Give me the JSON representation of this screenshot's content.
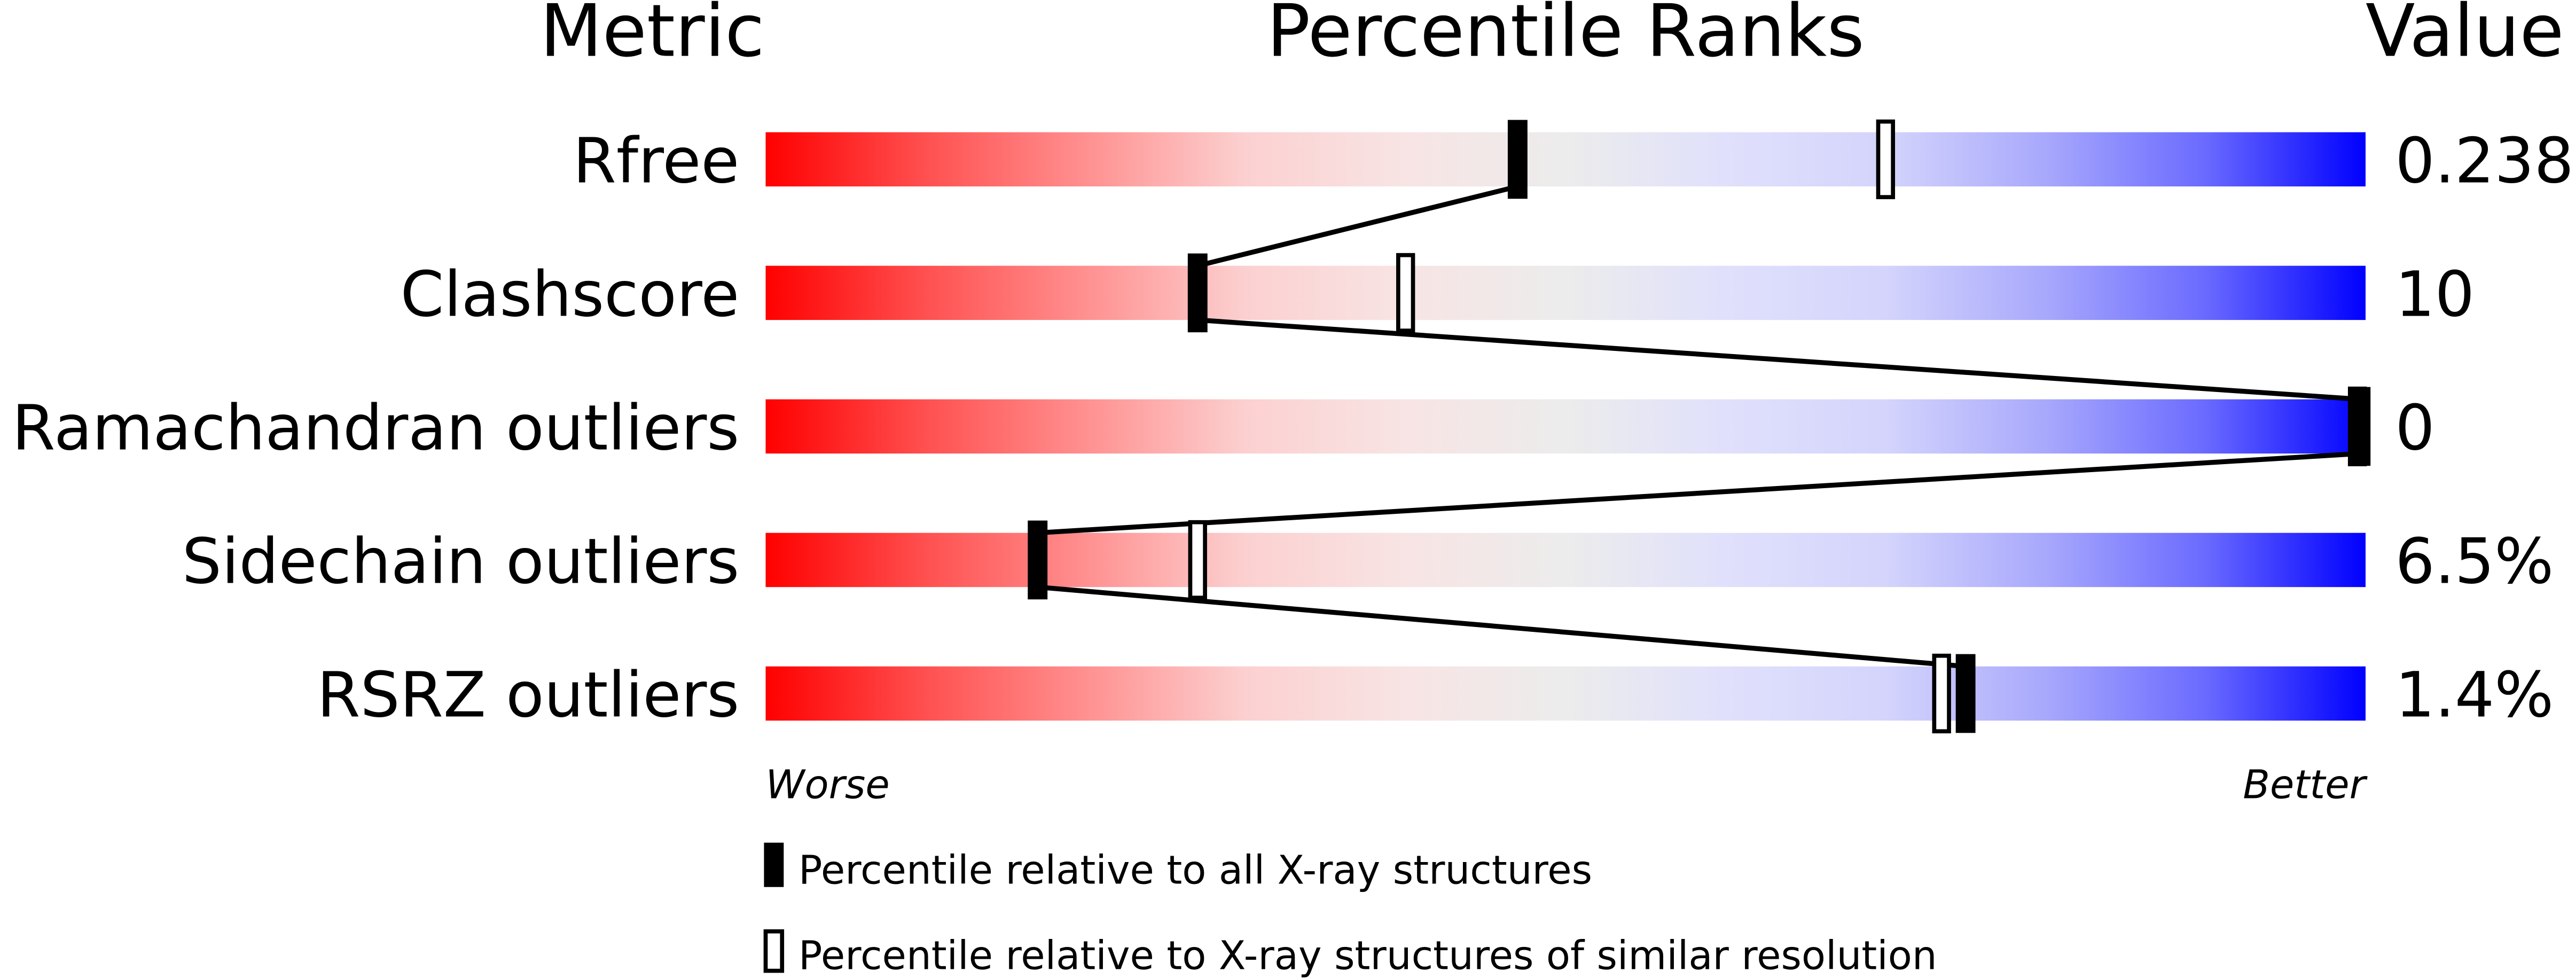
{
  "chart_data": {
    "type": "percentile-bar",
    "headers": {
      "metric": "Metric",
      "percentile": "Percentile Ranks",
      "value": "Value"
    },
    "xlim": [
      0,
      100
    ],
    "metrics": [
      {
        "name": "Rfree",
        "value": "0.238",
        "percentile_all": 47,
        "percentile_similar": 70
      },
      {
        "name": "Clashscore",
        "value": "10",
        "percentile_all": 27,
        "percentile_similar": 40
      },
      {
        "name": "Ramachandran outliers",
        "value": "0",
        "percentile_all": 100,
        "percentile_similar": 100
      },
      {
        "name": "Sidechain outliers",
        "value": "6.5%",
        "percentile_all": 17,
        "percentile_similar": 27
      },
      {
        "name": "RSRZ outliers",
        "value": "1.4%",
        "percentile_all": 75,
        "percentile_similar": 73.5
      }
    ],
    "axis_labels": {
      "left": "Worse",
      "right": "Better"
    },
    "legend": [
      {
        "marker": "filled",
        "label": "Percentile relative to all X-ray structures"
      },
      {
        "marker": "open",
        "label": "Percentile relative to X-ray structures of similar resolution"
      }
    ],
    "colors": {
      "worse": "#ff0000",
      "middle": "#eeeeee",
      "better": "#0000ff",
      "marker": "#000000"
    }
  }
}
